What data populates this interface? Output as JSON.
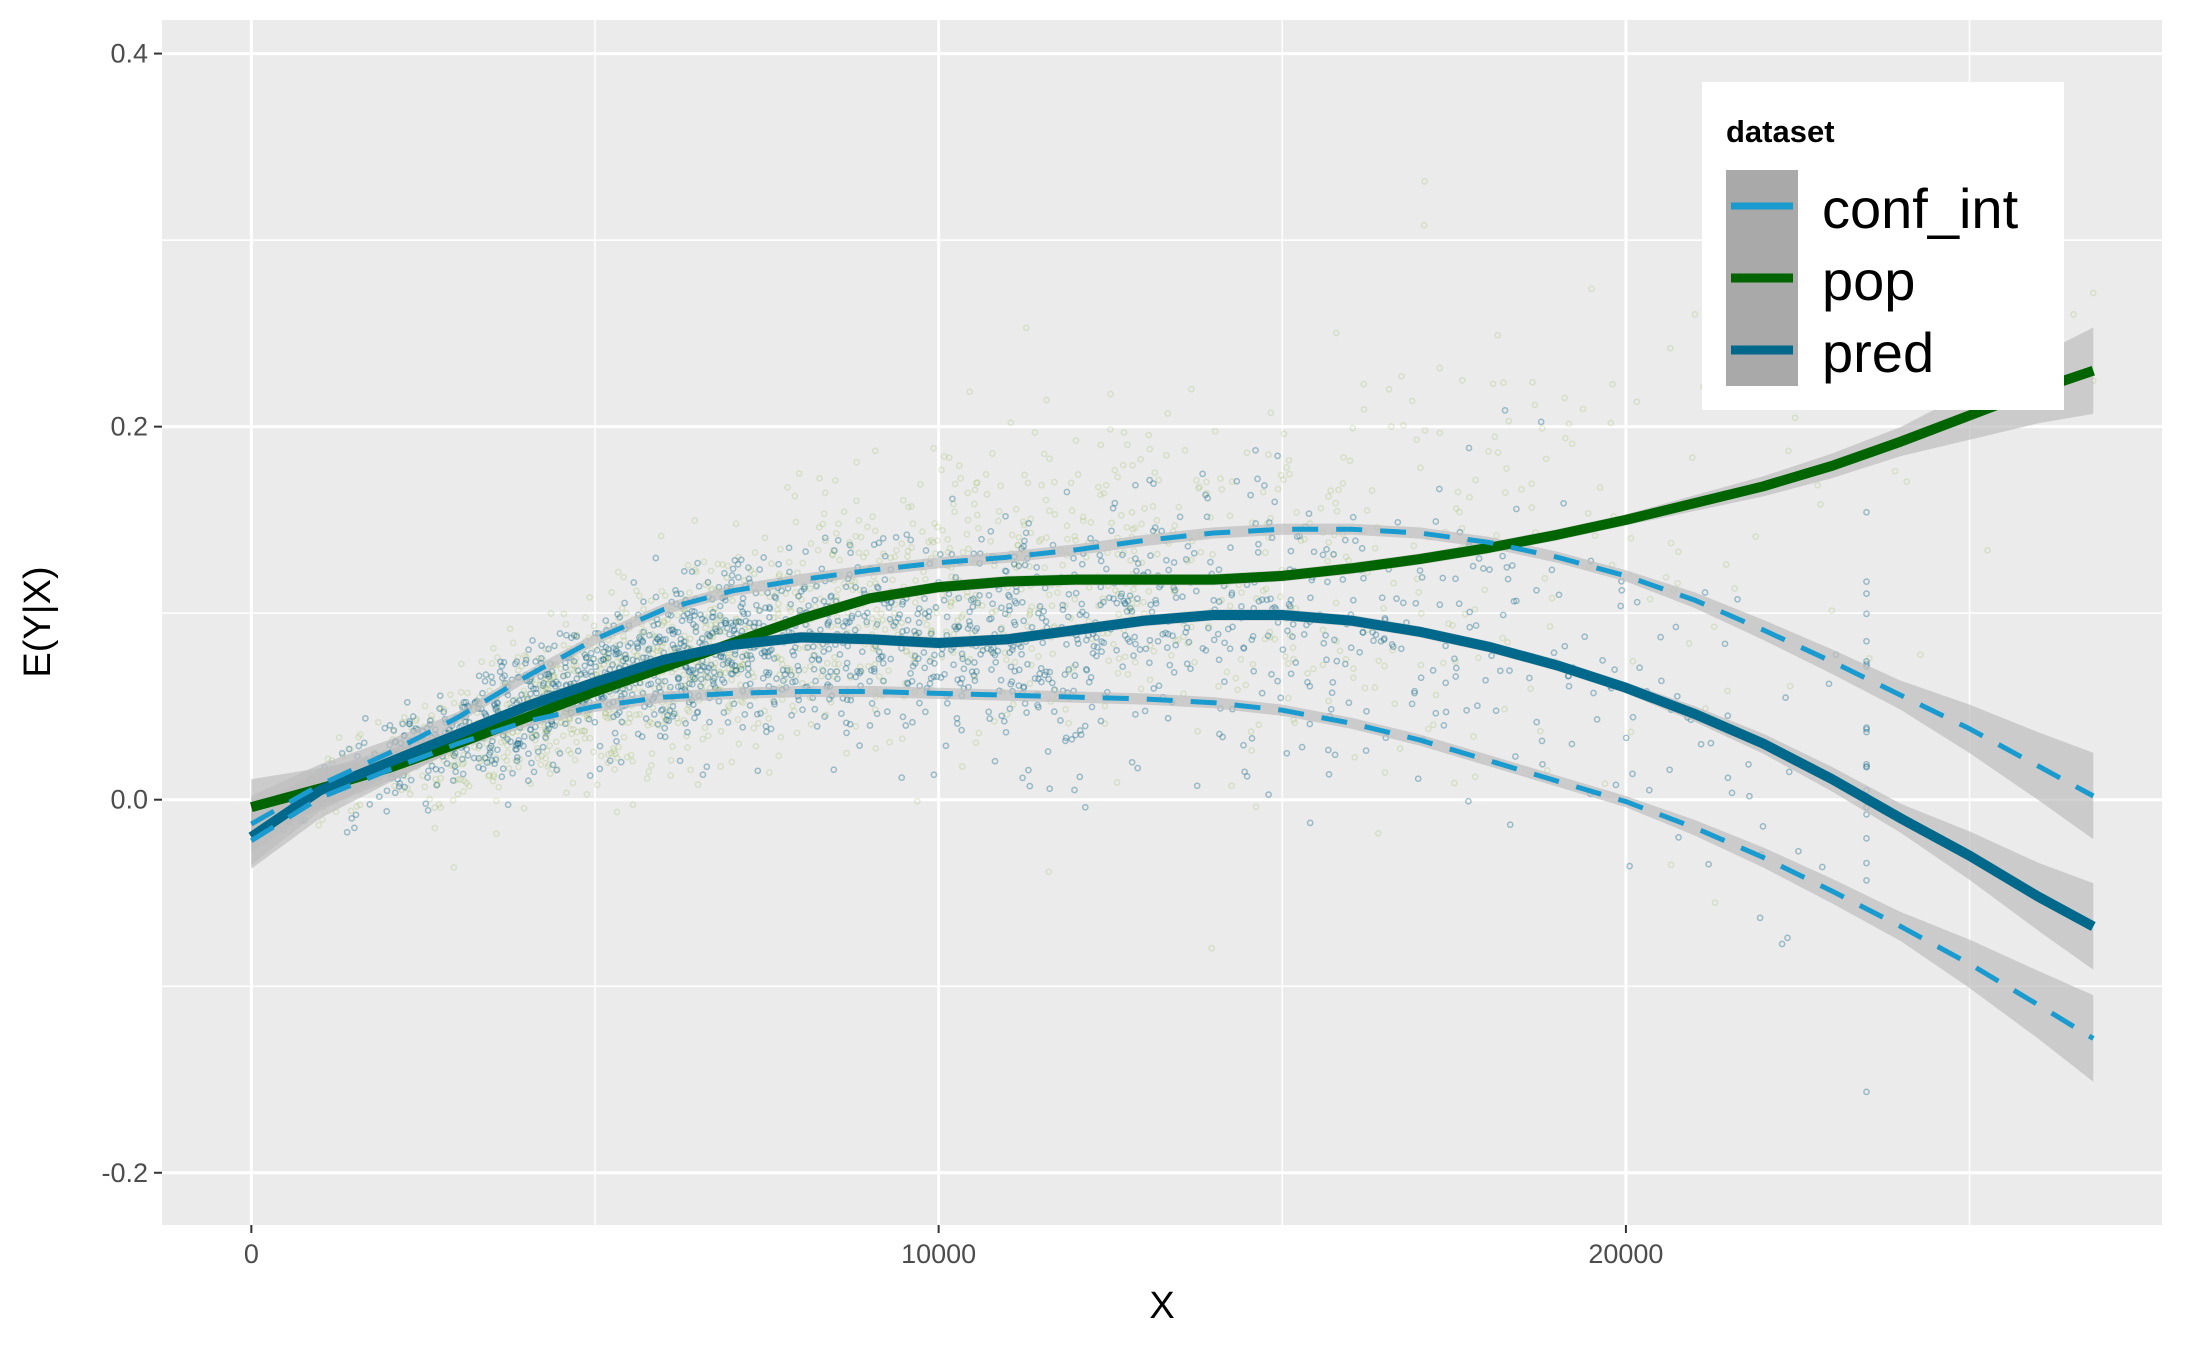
{
  "chart_data": {
    "type": "scatter",
    "title": "",
    "xlabel": "X",
    "ylabel": "E(Y|X)",
    "xlim": [
      -1300,
      27800
    ],
    "ylim": [
      -0.228,
      0.418
    ],
    "x_ticks": [
      0,
      10000,
      20000
    ],
    "x_tick_labels": [
      "0",
      "10000",
      "20000"
    ],
    "y_ticks": [
      -0.2,
      0.0,
      0.2,
      0.4
    ],
    "y_tick_labels": [
      "-0.2",
      "0.0",
      "0.2",
      "0.4"
    ],
    "grid": true,
    "legend": {
      "title": "dataset",
      "position": "top-right",
      "entries": [
        "conf_int",
        "pop",
        "pred"
      ]
    },
    "colors": {
      "panel": "#ebebeb",
      "grid": "#ffffff",
      "conf_int": "#1a9bcf",
      "pop": "#006400",
      "pred": "#00688b",
      "band": "#bdbdbd",
      "scatter_pop": "#8fb34a",
      "scatter_pred": "#1f6f8b"
    },
    "series": [
      {
        "name": "pop",
        "style": "solid",
        "x": [
          0,
          1000,
          2000,
          3000,
          4000,
          5000,
          6000,
          7000,
          8000,
          9000,
          10000,
          11000,
          12000,
          13000,
          14000,
          15000,
          16000,
          17000,
          18000,
          19000,
          20000,
          21000,
          22000,
          23000,
          24000,
          25000,
          26000,
          26800
        ],
        "y": [
          -0.004,
          0.006,
          0.017,
          0.03,
          0.044,
          0.058,
          0.071,
          0.084,
          0.097,
          0.108,
          0.114,
          0.117,
          0.118,
          0.118,
          0.118,
          0.12,
          0.124,
          0.129,
          0.135,
          0.142,
          0.15,
          0.159,
          0.168,
          0.179,
          0.192,
          0.206,
          0.22,
          0.23
        ]
      },
      {
        "name": "pred",
        "style": "solid",
        "x": [
          0,
          1000,
          2000,
          3000,
          4000,
          5000,
          6000,
          7000,
          8000,
          9000,
          10000,
          11000,
          12000,
          13000,
          14000,
          15000,
          16000,
          17000,
          18000,
          19000,
          20000,
          21000,
          22000,
          23000,
          24000,
          25000,
          26000,
          26800
        ],
        "y": [
          -0.02,
          0.005,
          0.02,
          0.035,
          0.05,
          0.063,
          0.075,
          0.083,
          0.087,
          0.086,
          0.084,
          0.086,
          0.091,
          0.096,
          0.099,
          0.099,
          0.096,
          0.09,
          0.082,
          0.072,
          0.06,
          0.046,
          0.03,
          0.011,
          -0.01,
          -0.03,
          -0.052,
          -0.068
        ]
      },
      {
        "name": "conf_int upper",
        "style": "dashed",
        "x": [
          0,
          1000,
          2000,
          3000,
          4000,
          5000,
          6000,
          7000,
          8000,
          9000,
          10000,
          11000,
          12000,
          13000,
          14000,
          15000,
          16000,
          17000,
          18000,
          19000,
          20000,
          21000,
          22000,
          23000,
          24000,
          25000,
          26000,
          26800
        ],
        "y": [
          -0.013,
          0.008,
          0.025,
          0.044,
          0.066,
          0.086,
          0.102,
          0.112,
          0.118,
          0.123,
          0.127,
          0.13,
          0.134,
          0.139,
          0.143,
          0.145,
          0.145,
          0.143,
          0.138,
          0.13,
          0.12,
          0.107,
          0.091,
          0.074,
          0.056,
          0.038,
          0.018,
          0.002
        ]
      },
      {
        "name": "conf_int lower",
        "style": "dashed",
        "x": [
          0,
          1000,
          2000,
          3000,
          4000,
          5000,
          6000,
          7000,
          8000,
          9000,
          10000,
          11000,
          12000,
          13000,
          14000,
          15000,
          16000,
          17000,
          18000,
          19000,
          20000,
          21000,
          22000,
          23000,
          24000,
          25000,
          26000,
          26800
        ],
        "y": [
          -0.022,
          0.001,
          0.016,
          0.03,
          0.042,
          0.05,
          0.055,
          0.057,
          0.058,
          0.058,
          0.057,
          0.056,
          0.055,
          0.054,
          0.052,
          0.048,
          0.041,
          0.032,
          0.021,
          0.01,
          -0.001,
          -0.015,
          -0.031,
          -0.049,
          -0.068,
          -0.088,
          -0.11,
          -0.128
        ]
      }
    ]
  }
}
